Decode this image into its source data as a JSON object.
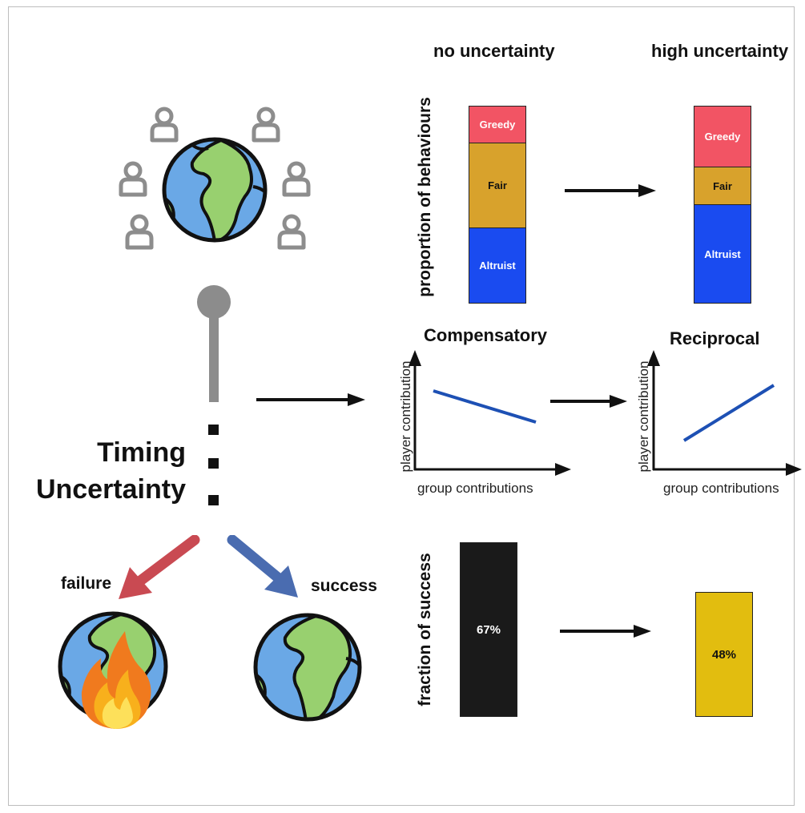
{
  "headers": {
    "left": "no uncertainty",
    "right": "high uncertainty"
  },
  "behaviour_panel": {
    "ylabel": "proportion of behaviours",
    "colors": {
      "greedy": "#f25464",
      "fair": "#d8a22c",
      "altruist": "#1a4bf0"
    },
    "no_uncertainty": [
      {
        "label": "Greedy",
        "value": 0.19
      },
      {
        "label": "Fair",
        "value": 0.43
      },
      {
        "label": "Altruist",
        "value": 0.38
      }
    ],
    "high_uncertainty": [
      {
        "label": "Greedy",
        "value": 0.31
      },
      {
        "label": "Fair",
        "value": 0.19
      },
      {
        "label": "Altruist",
        "value": 0.5
      }
    ]
  },
  "strategy_panel": {
    "left_title": "Compensatory",
    "right_title": "Reciprocal",
    "xlabel": "group contributions",
    "ylabel": "player contribution",
    "line_color": "#1d50b4"
  },
  "timing": {
    "line1": "Timing",
    "line2": "Uncertainty"
  },
  "outcomes": {
    "failure": "failure",
    "success": "success",
    "failure_color": "#c94a52",
    "success_color": "#4a6cb0"
  },
  "success_panel": {
    "ylabel": "fraction of success",
    "no_uncertainty": {
      "label": "67%",
      "value": 0.67,
      "color": "#1a1a1a"
    },
    "high_uncertainty": {
      "label": "48%",
      "value": 0.48,
      "color": "#e2bd0f"
    }
  },
  "icons": [
    "person-icon",
    "earth-icon",
    "fire-icon",
    "arrow-icon"
  ]
}
